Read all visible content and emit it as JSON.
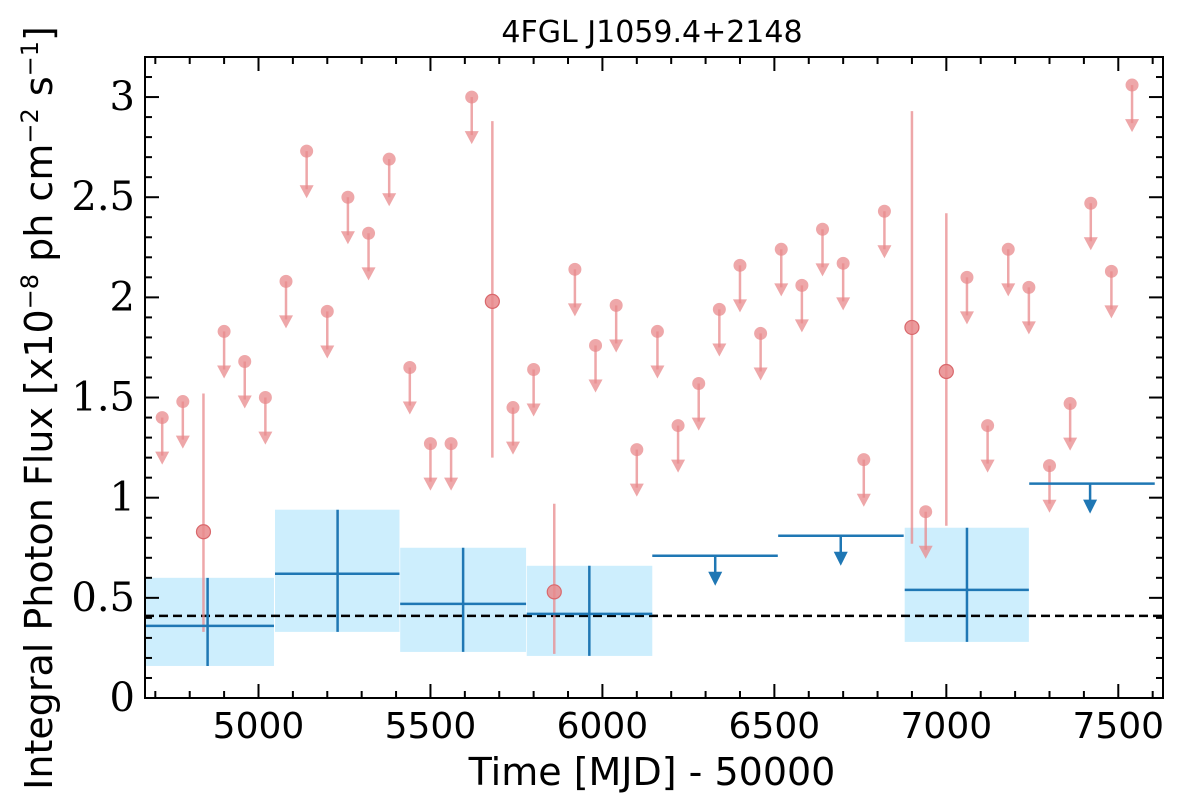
{
  "chart_data": {
    "type": "scatter",
    "title": "4FGL J1059.4+2148",
    "xlabel": "Time [MJD] - 50000",
    "ylabel": "Integral Photon Flux [x10",
    "ylabel_exp1": "−8",
    "ylabel_mid": " ph cm",
    "ylabel_exp2": "−2",
    "ylabel_mid2": " s",
    "ylabel_exp3": "−1",
    "ylabel_end": "]",
    "xlim": [
      4670,
      7630
    ],
    "ylim": [
      0,
      3.2
    ],
    "xticks": [
      5000,
      5500,
      6000,
      6500,
      7000,
      7500
    ],
    "xtick_labels": [
      "5000",
      "5500",
      "6000",
      "6500",
      "7000",
      "7500"
    ],
    "yticks": [
      0,
      0.5,
      1,
      1.5,
      2,
      2.5,
      3
    ],
    "ytick_labels": [
      "0",
      "0.5",
      "1",
      "1.5",
      "2",
      "2.5",
      "3"
    ],
    "reference_line": {
      "y": 0.41,
      "style": "dashed",
      "color": "#000000"
    },
    "colors": {
      "monthly": "#e8898c",
      "yearly": "#1f77b4",
      "band": "#cdeefd"
    },
    "monthly_upper_limits": {
      "x": [
        4720,
        4780,
        4900,
        4960,
        5020,
        5080,
        5140,
        5200,
        5260,
        5320,
        5380,
        5440,
        5500,
        5560,
        5620,
        5740,
        5800,
        5920,
        5980,
        6040,
        6100,
        6160,
        6220,
        6280,
        6340,
        6400,
        6460,
        6520,
        6580,
        6640,
        6700,
        6760,
        6820,
        6940,
        7060,
        7120,
        7180,
        7240,
        7300,
        7360,
        7420,
        7480,
        7540
      ],
      "y": [
        1.4,
        1.48,
        1.83,
        1.68,
        1.5,
        2.08,
        2.73,
        1.93,
        2.5,
        2.32,
        2.69,
        1.65,
        1.27,
        1.27,
        3.0,
        1.45,
        1.64,
        2.14,
        1.76,
        1.96,
        1.24,
        1.83,
        1.36,
        1.57,
        1.94,
        2.16,
        1.82,
        2.24,
        2.06,
        2.34,
        2.17,
        1.19,
        2.43,
        0.93,
        2.1,
        1.36,
        2.24,
        2.05,
        1.16,
        1.47,
        2.47,
        2.13,
        3.06
      ]
    },
    "monthly_detections": {
      "x": [
        4840,
        5680,
        5860,
        6900,
        7000
      ],
      "y": [
        0.83,
        1.98,
        0.53,
        1.85,
        1.63
      ],
      "y_low": [
        0.33,
        1.2,
        0.22,
        0.77,
        0.86
      ],
      "y_high": [
        1.52,
        2.88,
        0.97,
        2.93,
        2.42
      ]
    },
    "yearly_detections": {
      "x": [
        4852,
        5230,
        5595,
        5962,
        7060
      ],
      "x_low": [
        4670,
        5048,
        5412,
        5780,
        6879
      ],
      "x_high": [
        5045,
        5410,
        5778,
        6145,
        7240
      ],
      "y": [
        0.36,
        0.62,
        0.47,
        0.42,
        0.54
      ],
      "y_low": [
        0.16,
        0.33,
        0.23,
        0.21,
        0.28
      ],
      "y_high": [
        0.6,
        0.94,
        0.75,
        0.66,
        0.85
      ]
    },
    "yearly_upper_limits": {
      "x": [
        6328,
        6693,
        7418
      ],
      "x_low": [
        6145,
        6511,
        7241
      ],
      "x_high": [
        6510,
        6876,
        7606
      ],
      "y": [
        0.71,
        0.81,
        1.07
      ]
    }
  }
}
